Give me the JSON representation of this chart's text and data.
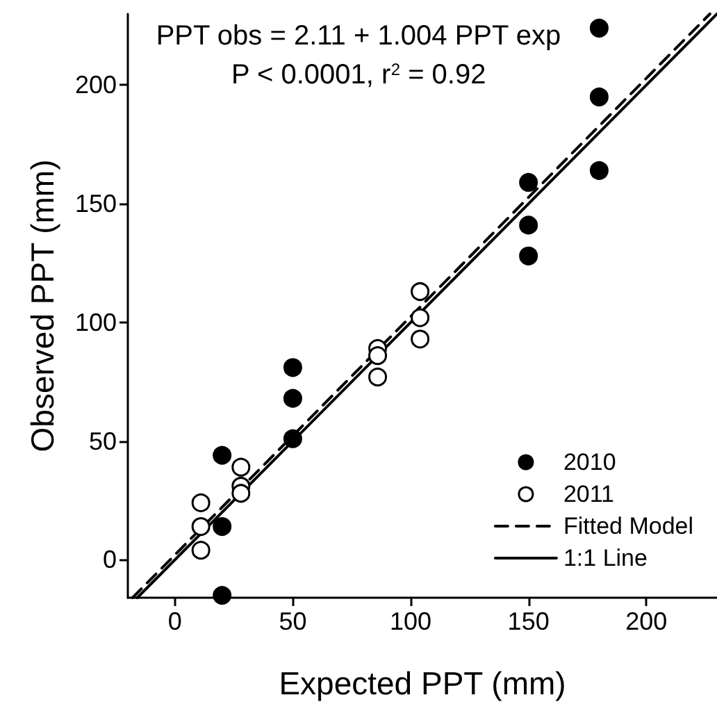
{
  "chart_data": {
    "type": "scatter",
    "xlabel": "Expected PPT (mm)",
    "ylabel": "Observed PPT (mm)",
    "annotations": [
      "PPT obs = 2.11 + 1.004 PPT exp",
      "P < 0.0001, r$^{2}$ = 0.92"
    ],
    "series": [
      {
        "name": "2010",
        "color": "#000000",
        "marker": "circle",
        "x": [
          20,
          20,
          20,
          50,
          50,
          50,
          150,
          150,
          150,
          180,
          180,
          180
        ],
        "values": [
          44,
          14,
          -15,
          81,
          68,
          51,
          159,
          141,
          128,
          224,
          195,
          164
        ]
      },
      {
        "name": "2011",
        "color": "#ffffff",
        "marker": "circle",
        "x": [
          11,
          11,
          11,
          28,
          28,
          28,
          86,
          86,
          86,
          104,
          104,
          104
        ],
        "values": [
          24,
          14,
          4,
          39,
          31,
          28,
          89,
          86,
          77,
          113,
          102,
          93
        ]
      },
      {
        "name": "Fitted Model",
        "type": "line",
        "color": "#000000",
        "line_style": "dashed",
        "marker": "none",
        "x": [
          -18,
          227
        ],
        "values": [
          -16,
          230
        ]
      },
      {
        "name": "1:1 Line",
        "type": "line",
        "color": "#000000",
        "line_style": "solid",
        "marker": "none",
        "x": [
          -16,
          230
        ],
        "values": [
          -16,
          230
        ]
      }
    ],
    "xlim": [
      -20,
      230
    ],
    "ylim": [
      -16,
      230
    ],
    "xticks": [
      0,
      50,
      100,
      150,
      200
    ],
    "yticks": [
      0,
      50,
      100,
      150,
      200
    ],
    "grid": false,
    "legend": "bottom right"
  }
}
